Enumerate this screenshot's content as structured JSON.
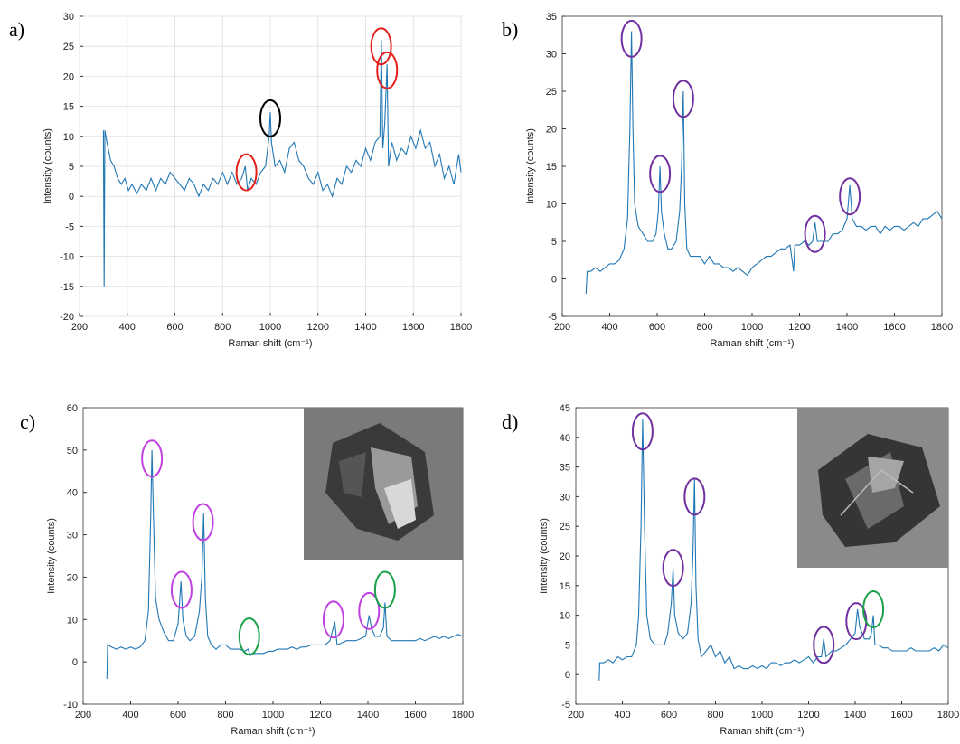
{
  "chart_data": [
    {
      "type": "line",
      "panel_label": "a)",
      "x_label": "Raman shift (cm⁻¹)",
      "y_label": "Intensity (counts)",
      "color": "#1f77b4",
      "grid": true,
      "xlim": [
        200,
        1800
      ],
      "xticks": [
        200,
        400,
        600,
        800,
        1000,
        1200,
        1400,
        1600,
        1800
      ],
      "ylim": [
        -20,
        30
      ],
      "yticks": [
        -20,
        -15,
        -10,
        -5,
        0,
        5,
        10,
        15,
        20,
        25,
        30
      ],
      "x": [
        300,
        303,
        306,
        315,
        330,
        345,
        360,
        375,
        390,
        405,
        420,
        440,
        460,
        480,
        500,
        520,
        540,
        560,
        580,
        600,
        620,
        640,
        660,
        680,
        700,
        720,
        740,
        760,
        780,
        800,
        820,
        840,
        860,
        880,
        895,
        905,
        920,
        940,
        960,
        980,
        995,
        1000,
        1005,
        1020,
        1040,
        1060,
        1080,
        1100,
        1120,
        1140,
        1160,
        1180,
        1200,
        1220,
        1240,
        1260,
        1280,
        1300,
        1320,
        1340,
        1360,
        1380,
        1400,
        1420,
        1440,
        1460,
        1466,
        1472,
        1480,
        1490,
        1496,
        1510,
        1530,
        1550,
        1570,
        1590,
        1610,
        1630,
        1650,
        1670,
        1690,
        1710,
        1730,
        1750,
        1770,
        1790,
        1800
      ],
      "values": [
        11,
        -15,
        11,
        9,
        6,
        5,
        3,
        2,
        3,
        1,
        2,
        0.5,
        2,
        1,
        3,
        1,
        3,
        2,
        4,
        3,
        2,
        1,
        3,
        2,
        0,
        2,
        1,
        3,
        2,
        4,
        2,
        4,
        2,
        3,
        5,
        1,
        3,
        2,
        4,
        5,
        10,
        14,
        9,
        5,
        6,
        4,
        8,
        9,
        6,
        5,
        3,
        2,
        4,
        1,
        2,
        0,
        3,
        2,
        5,
        4,
        6,
        5,
        8,
        6,
        9,
        10,
        26,
        8,
        12,
        22,
        5,
        9,
        6,
        8,
        7,
        10,
        8,
        11,
        8,
        9,
        5,
        7,
        3,
        5,
        2,
        7,
        4
      ],
      "circled_peaks": [
        {
          "x": 900,
          "y": 4,
          "color": "#e3201b"
        },
        {
          "x": 1000,
          "y": 13,
          "color": "#000000"
        },
        {
          "x": 1465,
          "y": 25,
          "color": "#e3201b"
        },
        {
          "x": 1490,
          "y": 21,
          "color": "#e3201b"
        }
      ]
    },
    {
      "type": "line",
      "panel_label": "b)",
      "x_label": "Raman shift (cm⁻¹)",
      "y_label": "Intensity (counts)",
      "color": "#1f77b4",
      "grid": false,
      "xlim": [
        200,
        1800
      ],
      "xticks": [
        200,
        400,
        600,
        800,
        1000,
        1200,
        1400,
        1600,
        1800
      ],
      "ylim": [
        -5,
        35
      ],
      "yticks": [
        -5,
        0,
        5,
        10,
        15,
        20,
        25,
        30,
        35
      ],
      "x": [
        300,
        305,
        320,
        340,
        360,
        380,
        400,
        420,
        440,
        460,
        475,
        485,
        492,
        498,
        505,
        520,
        540,
        560,
        580,
        595,
        605,
        612,
        618,
        630,
        645,
        660,
        680,
        695,
        703,
        710,
        716,
        725,
        740,
        760,
        780,
        800,
        820,
        840,
        860,
        880,
        900,
        920,
        940,
        960,
        980,
        1000,
        1020,
        1040,
        1060,
        1080,
        1100,
        1120,
        1140,
        1160,
        1175,
        1180,
        1200,
        1220,
        1240,
        1255,
        1265,
        1275,
        1300,
        1320,
        1340,
        1360,
        1380,
        1400,
        1412,
        1422,
        1440,
        1460,
        1480,
        1500,
        1520,
        1540,
        1560,
        1580,
        1600,
        1620,
        1640,
        1660,
        1680,
        1700,
        1720,
        1740,
        1760,
        1780,
        1800
      ],
      "values": [
        -2,
        1,
        1,
        1.5,
        1,
        1.5,
        2,
        2,
        2.5,
        4,
        8,
        20,
        33,
        20,
        10,
        7,
        6,
        5,
        5,
        6,
        9,
        15,
        9,
        6,
        4,
        4,
        5,
        9,
        15,
        25,
        10,
        4,
        3,
        3,
        3,
        2,
        3,
        2,
        2,
        1.5,
        1.5,
        1,
        1.5,
        1,
        0.5,
        1.5,
        2,
        2.5,
        3,
        3,
        3.5,
        4,
        4,
        4.5,
        1,
        4.5,
        4.5,
        5,
        4.5,
        5,
        7.5,
        5,
        5,
        5,
        6,
        6,
        6.5,
        8,
        12.5,
        8,
        7,
        7,
        6.5,
        7,
        7,
        6,
        7,
        6.5,
        7,
        7,
        6.5,
        7,
        7.5,
        7,
        8,
        8,
        8.5,
        9,
        8
      ],
      "circled_peaks": [
        {
          "x": 492,
          "y": 32,
          "color": "#7030a0"
        },
        {
          "x": 612,
          "y": 14,
          "color": "#7030a0"
        },
        {
          "x": 710,
          "y": 24,
          "color": "#7030a0"
        },
        {
          "x": 1265,
          "y": 6,
          "color": "#7030a0"
        },
        {
          "x": 1412,
          "y": 11,
          "color": "#7030a0"
        }
      ]
    },
    {
      "type": "line",
      "panel_label": "c)",
      "x_label": "Raman shift (cm⁻¹)",
      "y_label": "Intensity (counts)",
      "color": "#1f77b4",
      "grid": false,
      "xlim": [
        200,
        1800
      ],
      "xticks": [
        200,
        400,
        600,
        800,
        1000,
        1200,
        1400,
        1600,
        1800
      ],
      "ylim": [
        -10,
        60
      ],
      "yticks": [
        -10,
        0,
        10,
        20,
        30,
        40,
        50,
        60
      ],
      "x": [
        300,
        303,
        320,
        340,
        360,
        380,
        400,
        420,
        440,
        460,
        475,
        485,
        490,
        496,
        505,
        520,
        540,
        560,
        580,
        600,
        612,
        620,
        635,
        650,
        670,
        690,
        700,
        708,
        715,
        725,
        740,
        760,
        780,
        800,
        820,
        840,
        860,
        880,
        895,
        905,
        920,
        940,
        960,
        980,
        1000,
        1020,
        1040,
        1060,
        1080,
        1100,
        1120,
        1140,
        1160,
        1180,
        1200,
        1220,
        1240,
        1260,
        1270,
        1290,
        1310,
        1330,
        1350,
        1370,
        1390,
        1405,
        1415,
        1430,
        1450,
        1465,
        1472,
        1480,
        1500,
        1520,
        1540,
        1560,
        1580,
        1600,
        1620,
        1640,
        1660,
        1680,
        1700,
        1720,
        1740,
        1760,
        1780,
        1800
      ],
      "values": [
        -4,
        4,
        3.5,
        3,
        3.5,
        3,
        3.5,
        3,
        3.5,
        5,
        12,
        35,
        50,
        35,
        15,
        10,
        7,
        5,
        5,
        9,
        19,
        10,
        6,
        5,
        6,
        12,
        20,
        35,
        15,
        6,
        4,
        3,
        4,
        4,
        3,
        3,
        3,
        2.5,
        3,
        1.5,
        2,
        2,
        2,
        2.5,
        2.5,
        3,
        3,
        3,
        3.5,
        3,
        3.5,
        3.5,
        4,
        4,
        4,
        4,
        5,
        9.5,
        4,
        4.5,
        5,
        5,
        5,
        5.5,
        6,
        11,
        8,
        6,
        6,
        8,
        14,
        6,
        5,
        5,
        5,
        5,
        5,
        5,
        5.5,
        5,
        5.5,
        6,
        5.5,
        6,
        5.5,
        6,
        6.5,
        6
      ],
      "circled_peaks": [
        {
          "x": 490,
          "y": 48,
          "color": "#c040e0"
        },
        {
          "x": 615,
          "y": 17,
          "color": "#c040e0"
        },
        {
          "x": 705,
          "y": 33,
          "color": "#c040e0"
        },
        {
          "x": 900,
          "y": 6,
          "color": "#1aa04a"
        },
        {
          "x": 1255,
          "y": 10,
          "color": "#c040e0"
        },
        {
          "x": 1405,
          "y": 12,
          "color": "#c040e0"
        },
        {
          "x": 1472,
          "y": 17,
          "color": "#1aa04a"
        }
      ]
    },
    {
      "type": "line",
      "panel_label": "d)",
      "x_label": "Raman shift (cm⁻¹)",
      "y_label": "Intensity (counts)",
      "color": "#1f77b4",
      "grid": false,
      "xlim": [
        200,
        1800
      ],
      "xticks": [
        200,
        400,
        600,
        800,
        1000,
        1200,
        1400,
        1600,
        1800
      ],
      "ylim": [
        -5,
        45
      ],
      "yticks": [
        -5,
        0,
        5,
        10,
        15,
        20,
        25,
        30,
        35,
        40,
        45
      ],
      "x": [
        300,
        303,
        320,
        340,
        360,
        380,
        400,
        420,
        440,
        460,
        470,
        480,
        487,
        495,
        505,
        520,
        540,
        560,
        580,
        595,
        610,
        618,
        625,
        640,
        660,
        680,
        695,
        703,
        710,
        716,
        725,
        740,
        760,
        780,
        800,
        820,
        840,
        860,
        880,
        900,
        920,
        940,
        960,
        980,
        1000,
        1020,
        1040,
        1060,
        1080,
        1100,
        1120,
        1140,
        1160,
        1180,
        1200,
        1220,
        1240,
        1255,
        1265,
        1275,
        1300,
        1320,
        1340,
        1360,
        1380,
        1400,
        1410,
        1420,
        1440,
        1460,
        1470,
        1478,
        1485,
        1500,
        1520,
        1540,
        1560,
        1580,
        1600,
        1620,
        1640,
        1660,
        1680,
        1700,
        1720,
        1740,
        1760,
        1780,
        1800
      ],
      "values": [
        -1,
        2,
        2,
        2.5,
        2,
        3,
        2.5,
        3,
        3,
        5,
        10,
        25,
        43,
        25,
        10,
        6,
        5,
        5,
        5,
        7,
        12,
        18,
        10,
        7,
        6,
        7,
        12,
        20,
        33,
        15,
        6,
        3,
        4,
        5,
        3,
        4,
        2,
        3,
        1,
        1.5,
        1,
        1,
        1.5,
        1,
        1.5,
        1,
        2,
        2,
        1.5,
        2,
        2,
        2.5,
        2,
        2.5,
        3,
        2,
        3,
        3,
        6,
        3,
        4,
        4,
        4.5,
        5,
        6,
        7,
        11,
        8,
        6,
        6,
        7,
        10,
        5,
        5,
        4.5,
        4.5,
        4,
        4,
        4,
        4,
        4.5,
        4,
        4,
        4,
        4,
        4.5,
        4,
        5,
        4.5
      ],
      "circled_peaks": [
        {
          "x": 487,
          "y": 41,
          "color": "#7030a0"
        },
        {
          "x": 618,
          "y": 18,
          "color": "#7030a0"
        },
        {
          "x": 710,
          "y": 30,
          "color": "#7030a0"
        },
        {
          "x": 1265,
          "y": 5,
          "color": "#7030a0"
        },
        {
          "x": 1405,
          "y": 9,
          "color": "#7030a0"
        },
        {
          "x": 1478,
          "y": 11,
          "color": "#1aa04a"
        }
      ]
    }
  ]
}
